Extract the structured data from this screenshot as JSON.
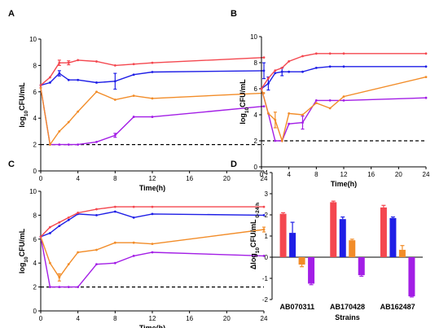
{
  "colors": {
    "red": "#f4474f",
    "blue": "#1e1ee6",
    "orange": "#f28c28",
    "purple": "#a31ee6"
  },
  "chart_data": [
    {
      "panel_label": "A",
      "type": "line",
      "xlabel": "Time(h)",
      "ylabel": "log10CFU/mL",
      "xlim": [
        0,
        24
      ],
      "ylim": [
        0,
        10
      ],
      "xticks": [
        0,
        4,
        8,
        12,
        16,
        20,
        24
      ],
      "yticks": [
        0,
        2,
        4,
        6,
        8,
        10
      ],
      "reference_line": {
        "y": 2,
        "style": "dashed"
      },
      "series": [
        {
          "color": "red",
          "x": [
            0,
            1,
            2,
            3,
            4,
            6,
            8,
            10,
            12,
            24
          ],
          "y": [
            6.5,
            7.1,
            8.2,
            8.2,
            8.4,
            8.3,
            8.0,
            8.1,
            8.2,
            8.6
          ],
          "err": [
            0,
            0,
            0.2,
            0.15,
            0,
            0,
            0,
            0,
            0,
            0
          ]
        },
        {
          "color": "blue",
          "x": [
            0,
            1,
            2,
            3,
            4,
            6,
            8,
            10,
            12,
            24
          ],
          "y": [
            6.5,
            6.7,
            7.4,
            6.9,
            6.9,
            6.7,
            6.8,
            7.3,
            7.5,
            7.6
          ],
          "err": [
            0,
            0,
            0.2,
            0,
            0,
            0,
            0.6,
            0,
            0,
            0.6
          ]
        },
        {
          "color": "orange",
          "x": [
            0,
            1,
            2,
            3,
            4,
            6,
            8,
            10,
            12,
            24
          ],
          "y": [
            6.3,
            2.0,
            3.0,
            3.7,
            4.5,
            6.0,
            5.4,
            5.7,
            5.5,
            5.9
          ],
          "err": [
            0,
            0,
            0,
            0,
            0,
            0,
            0,
            0,
            0,
            0
          ]
        },
        {
          "color": "purple",
          "x": [
            0,
            1,
            2,
            3,
            4,
            6,
            8,
            10,
            12,
            24
          ],
          "y": [
            6.3,
            2.0,
            2.0,
            2.0,
            2.0,
            2.2,
            2.7,
            4.1,
            4.1,
            4.9
          ],
          "err": [
            0,
            0,
            0,
            0,
            0,
            0,
            0.15,
            0,
            0,
            0
          ]
        }
      ]
    },
    {
      "panel_label": "B",
      "type": "line",
      "xlabel": "Time(h)",
      "ylabel": "log10CFU/mL",
      "xlim": [
        0,
        24
      ],
      "ylim": [
        0,
        10
      ],
      "xticks": [
        0,
        4,
        8,
        12,
        16,
        20,
        24
      ],
      "yticks": [
        0,
        2,
        4,
        6,
        8,
        10
      ],
      "reference_line": {
        "y": 2,
        "style": "dashed"
      },
      "series": [
        {
          "color": "red",
          "x": [
            0,
            1,
            2,
            3,
            4,
            6,
            8,
            10,
            12,
            24
          ],
          "y": [
            6.0,
            6.8,
            7.4,
            7.6,
            8.1,
            8.5,
            8.7,
            8.7,
            8.7,
            8.7
          ],
          "err": [
            0,
            0,
            0,
            0,
            0,
            0,
            0,
            0,
            0,
            0
          ]
        },
        {
          "color": "blue",
          "x": [
            0,
            1,
            2,
            3,
            4,
            6,
            8,
            10,
            12,
            24
          ],
          "y": [
            6.0,
            6.4,
            7.2,
            7.3,
            7.3,
            7.3,
            7.6,
            7.7,
            7.7,
            7.7
          ],
          "err": [
            0,
            0.5,
            0,
            0.3,
            0,
            0,
            0,
            0,
            0,
            0
          ]
        },
        {
          "color": "orange",
          "x": [
            0,
            1,
            2,
            3,
            4,
            6,
            8,
            10,
            12,
            24
          ],
          "y": [
            6.0,
            4.1,
            3.6,
            2.0,
            4.1,
            4.0,
            4.9,
            4.5,
            5.4,
            6.9
          ],
          "err": [
            0,
            0,
            0.6,
            0,
            0,
            0,
            0,
            0,
            0,
            0
          ]
        },
        {
          "color": "purple",
          "x": [
            0,
            1,
            2,
            3,
            4,
            6,
            8,
            10,
            12,
            24
          ],
          "y": [
            6.0,
            4.1,
            2.0,
            2.0,
            3.3,
            3.4,
            5.1,
            5.1,
            5.1,
            5.3
          ],
          "err": [
            0,
            0,
            0,
            0,
            0,
            0.5,
            0,
            0,
            0,
            0
          ]
        }
      ]
    },
    {
      "panel_label": "C",
      "type": "line",
      "xlabel": "Time(h)",
      "ylabel": "log10CFU/mL",
      "xlim": [
        0,
        24
      ],
      "ylim": [
        0,
        10
      ],
      "xticks": [
        0,
        4,
        8,
        12,
        16,
        20,
        24
      ],
      "yticks": [
        0,
        2,
        4,
        6,
        8,
        10
      ],
      "reference_line": {
        "y": 2,
        "style": "dashed"
      },
      "series": [
        {
          "color": "red",
          "x": [
            0,
            1,
            2,
            3,
            4,
            6,
            8,
            10,
            12,
            24
          ],
          "y": [
            6.2,
            7.0,
            7.4,
            7.8,
            8.2,
            8.5,
            8.7,
            8.7,
            8.7,
            8.7
          ],
          "err": [
            0,
            0,
            0,
            0,
            0,
            0,
            0,
            0,
            0,
            0
          ]
        },
        {
          "color": "blue",
          "x": [
            0,
            1,
            2,
            3,
            4,
            6,
            8,
            10,
            12,
            24
          ],
          "y": [
            6.2,
            6.5,
            7.1,
            7.6,
            8.1,
            8.0,
            8.3,
            7.8,
            8.1,
            8.0
          ],
          "err": [
            0,
            0,
            0,
            0,
            0,
            0,
            0,
            0,
            0,
            0
          ]
        },
        {
          "color": "orange",
          "x": [
            0,
            1,
            2,
            3,
            4,
            6,
            8,
            10,
            12,
            24
          ],
          "y": [
            6.2,
            4.0,
            2.8,
            3.9,
            4.9,
            5.1,
            5.7,
            5.7,
            5.6,
            6.8
          ],
          "err": [
            0,
            0,
            0.3,
            0,
            0,
            0,
            0,
            0,
            0,
            0.2
          ]
        },
        {
          "color": "purple",
          "x": [
            0,
            1,
            2,
            3,
            4,
            6,
            8,
            10,
            12,
            24
          ],
          "y": [
            6.2,
            2.0,
            2.0,
            2.0,
            2.0,
            3.9,
            4.0,
            4.6,
            4.9,
            4.6
          ],
          "err": [
            0,
            0,
            0,
            0,
            0,
            0,
            0,
            0,
            0,
            0
          ]
        }
      ]
    },
    {
      "panel_label": "D",
      "type": "bar",
      "xlabel": "Strains",
      "ylabel": "Δlog10CFU/mL 0-24 h",
      "ylim": [
        -2,
        4
      ],
      "yticks": [
        -2,
        -1,
        0,
        1,
        2,
        3,
        4
      ],
      "categories": [
        "AB070311",
        "AB170428",
        "AB162487"
      ],
      "series": [
        {
          "color": "red",
          "values": [
            2.05,
            2.6,
            2.35
          ],
          "err": [
            0.05,
            0.05,
            0.1
          ]
        },
        {
          "color": "blue",
          "values": [
            1.15,
            1.8,
            1.85
          ],
          "err": [
            0.5,
            0.1,
            0.05
          ]
        },
        {
          "color": "orange",
          "values": [
            -0.35,
            0.8,
            0.35
          ],
          "err": [
            0.1,
            0.05,
            0.2
          ]
        },
        {
          "color": "purple",
          "values": [
            -1.25,
            -0.85,
            -1.85
          ],
          "err": [
            0.05,
            0.05,
            0.03
          ]
        }
      ]
    }
  ]
}
